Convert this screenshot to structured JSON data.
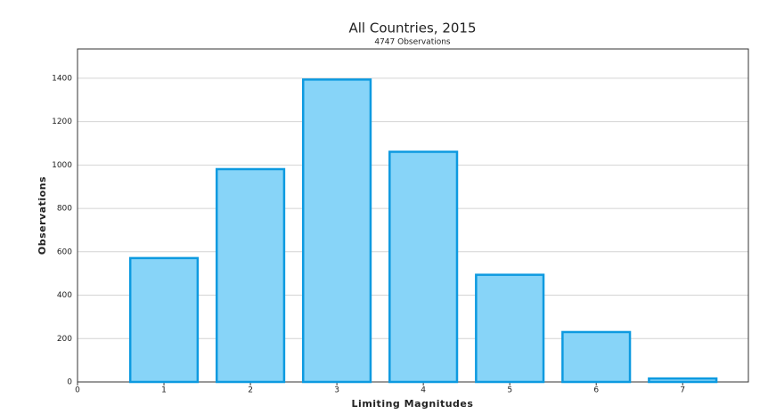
{
  "chart_data": {
    "type": "bar",
    "title": "All Countries, 2015",
    "subtitle": "4747 Observations",
    "x_label": "Limiting Magnitudes",
    "y_label": "Observations",
    "x": [
      1,
      2,
      3,
      4,
      5,
      6,
      7
    ],
    "values": [
      571,
      981,
      1394,
      1061,
      494,
      230,
      16
    ],
    "color": "#87d4f8",
    "edge_color": "#0d9ae0",
    "xlim": [
      0,
      7.76
    ],
    "xticks": [
      0,
      1,
      2,
      3,
      4,
      5,
      6,
      7
    ],
    "ylim": [
      0,
      1535
    ],
    "yticks": [
      0,
      200,
      400,
      600,
      800,
      1000,
      1200,
      1400
    ],
    "grid": true
  }
}
